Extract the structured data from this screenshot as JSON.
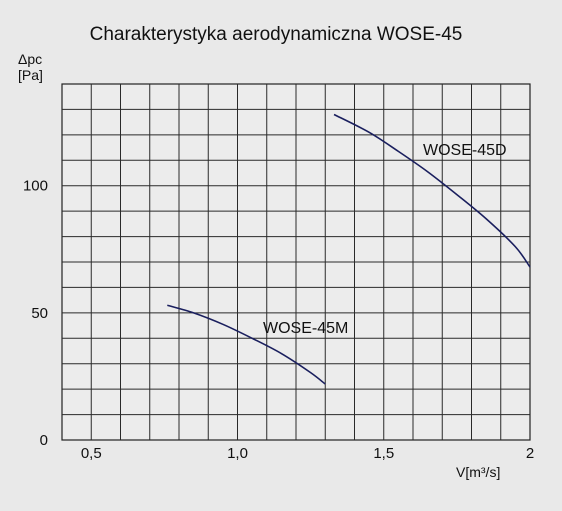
{
  "chart_data": {
    "type": "line",
    "title": "Charakterystyka aerodynamiczna WOSE-45",
    "ylabel_line1": "Δpc",
    "ylabel_line2": "[Pa]",
    "xlabel": "V[m³/s]",
    "xlim": [
      0.4,
      2.0
    ],
    "ylim": [
      0,
      140
    ],
    "x_ticks": [
      0.5,
      1.0,
      1.5,
      2.0
    ],
    "x_tick_labels": [
      "0,5",
      "1,0",
      "1,5",
      "2"
    ],
    "y_ticks": [
      0,
      50,
      100
    ],
    "y_tick_labels": [
      "0",
      "50",
      "100"
    ],
    "grid": true,
    "series": [
      {
        "name": "WOSE-45M",
        "color": "#1a1f5e",
        "x": [
          0.76,
          0.85,
          0.95,
          1.05,
          1.15,
          1.25,
          1.3
        ],
        "y": [
          53,
          50,
          45.5,
          40,
          34,
          26.5,
          22
        ]
      },
      {
        "name": "WOSE-45D",
        "color": "#1a1f5e",
        "x": [
          1.33,
          1.45,
          1.55,
          1.65,
          1.75,
          1.85,
          1.95,
          2.0
        ],
        "y": [
          128,
          121,
          113.5,
          105.5,
          96.5,
          87,
          76,
          68
        ]
      }
    ]
  }
}
